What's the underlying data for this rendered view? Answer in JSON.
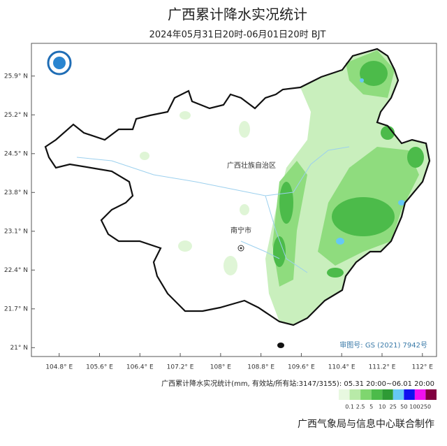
{
  "title": "广西累计降水实况统计",
  "subtitle": "2024年05月31日20时-06月01日20时 BJT",
  "map": {
    "xlim": [
      104.25,
      112.28
    ],
    "ylim": [
      20.84,
      26.49
    ],
    "yticks": [
      {
        "value": 25.9,
        "label": "25.9° N"
      },
      {
        "value": 25.2,
        "label": "25.2° N"
      },
      {
        "value": 24.5,
        "label": "24.5° N"
      },
      {
        "value": 23.8,
        "label": "23.8° N"
      },
      {
        "value": 23.1,
        "label": "23.1° N"
      },
      {
        "value": 22.4,
        "label": "22.4° N"
      },
      {
        "value": 21.7,
        "label": "21.7° N"
      },
      {
        "value": 21,
        "label": "21° N"
      }
    ],
    "xticks": [
      {
        "value": 104.8,
        "label": "104.8° E"
      },
      {
        "value": 105.6,
        "label": "105.6° E"
      },
      {
        "value": 106.4,
        "label": "106.4° E"
      },
      {
        "value": 107.2,
        "label": "107.2° E"
      },
      {
        "value": 108,
        "label": "108° E"
      },
      {
        "value": 108.8,
        "label": "108.8° E"
      },
      {
        "value": 109.6,
        "label": "109.6° E"
      },
      {
        "value": 110.4,
        "label": "110.4° E"
      },
      {
        "value": 111.2,
        "label": "111.2° E"
      },
      {
        "value": 112,
        "label": "112° E"
      }
    ],
    "region_label": "广西壮族自治区",
    "city_label": "南宁市",
    "approval": "审图号: GS (2021) 7942号"
  },
  "legend": {
    "caption": "广西累计降水实况统计(mm, 有效站/所有站:3147/3155): 05.31 20:00~06.01 20:00",
    "colors": [
      "#e8f8e0",
      "#b8eaa8",
      "#7fd66f",
      "#4cbb4a",
      "#2e9a35",
      "#66c8f5",
      "#1010f0",
      "#f010f0",
      "#800040"
    ],
    "bounds": [
      0.1,
      2.5,
      5,
      10,
      25,
      50,
      100,
      250
    ]
  },
  "footer": "广西气象局与信息中心联合制作"
}
